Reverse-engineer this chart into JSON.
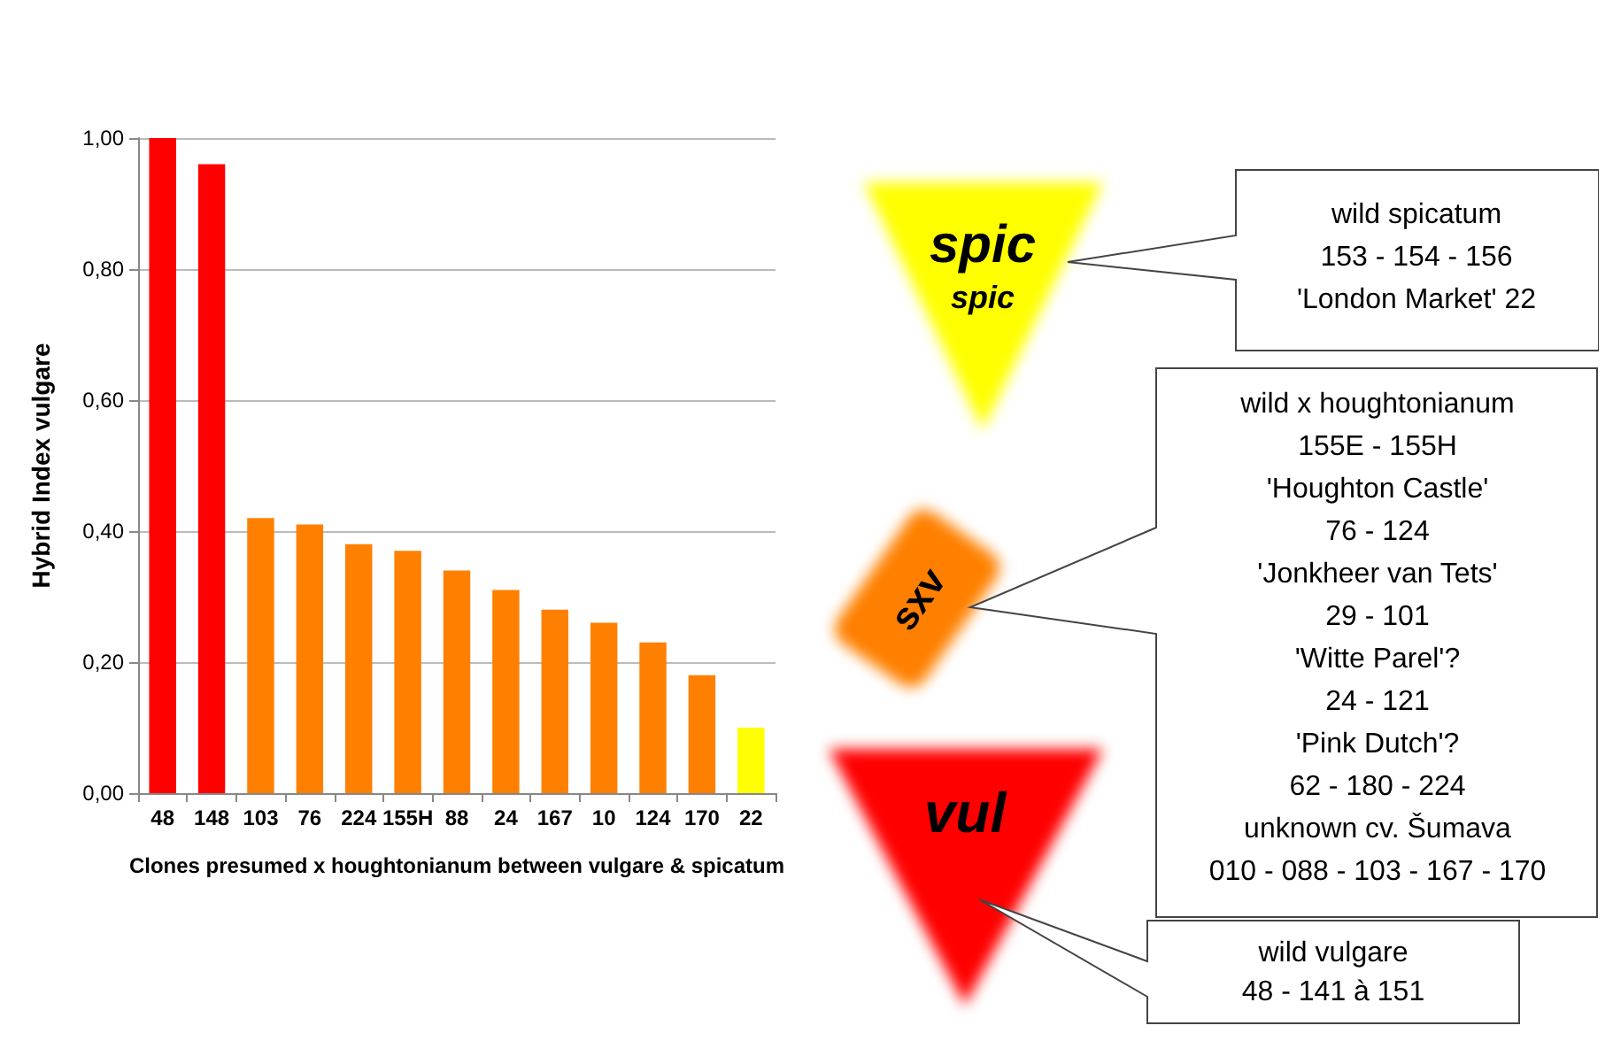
{
  "chart_data": {
    "type": "bar",
    "xlabel": "Clones presumed x houghtonianum between vulgare & spicatum",
    "ylabel": "Hybrid Index vulgare",
    "categories": [
      "48",
      "148",
      "103",
      "76",
      "224",
      "155H",
      "88",
      "24",
      "167",
      "10",
      "124",
      "170",
      "22"
    ],
    "values": [
      1.0,
      0.96,
      0.42,
      0.41,
      0.38,
      0.37,
      0.34,
      0.31,
      0.28,
      0.26,
      0.23,
      0.18,
      0.1
    ],
    "colors": [
      "#ff0000",
      "#ff0000",
      "#ff8000",
      "#ff8000",
      "#ff8000",
      "#ff8000",
      "#ff8000",
      "#ff8000",
      "#ff8000",
      "#ff8000",
      "#ff8000",
      "#ff8000",
      "#ffff00"
    ],
    "ylim": [
      0,
      1
    ],
    "yticks": [
      {
        "value": 0,
        "label": "0,00"
      },
      {
        "value": 0.2,
        "label": "0,20"
      },
      {
        "value": 0.4,
        "label": "0,40"
      },
      {
        "value": 0.6,
        "label": "0,60"
      },
      {
        "value": 0.8,
        "label": "0,80"
      },
      {
        "value": 1,
        "label": "1,00"
      }
    ],
    "grid": "y",
    "annotations": [
      "spic",
      "spic",
      "sxv",
      "vul",
      "wild spicatum\n153 - 154 - 156\n'London Market' 22",
      "wild x houghtonianum\n155E - 155H\n'Houghton Castle'\n76 - 124\n'Jonkheer van Tets'\n29 - 101\n'Witte Parel'?\n24 - 121\n'Pink Dutch'?\n62 - 180 - 224\nunknown cv. Šumava\n010 - 088 - 103 - 167 - 170",
      "wild vulgare\n48 - 141 à 151"
    ]
  }
}
